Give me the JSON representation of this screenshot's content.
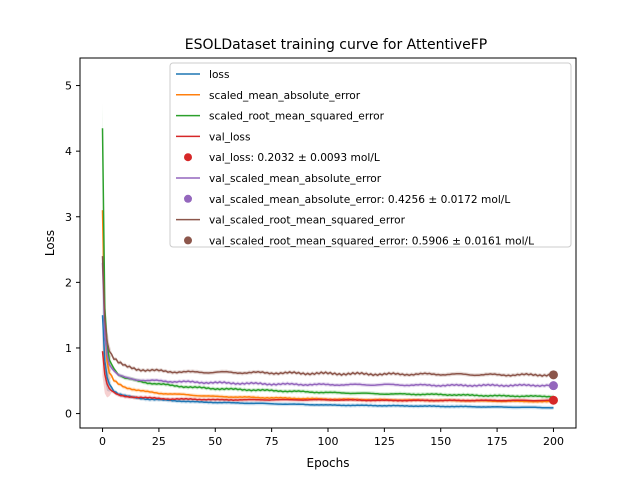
{
  "chart_data": {
    "type": "line",
    "title": "ESOLDataset training curve for AttentiveFP",
    "xlabel": "Epochs",
    "ylabel": "Loss",
    "xlim": [
      -10,
      210
    ],
    "ylim": [
      -0.22,
      5.42
    ],
    "xticks": [
      0,
      25,
      50,
      75,
      100,
      125,
      150,
      175,
      200
    ],
    "yticks": [
      0,
      1,
      2,
      3,
      4,
      5
    ],
    "grid": false,
    "legend_position": "top-right",
    "series": [
      {
        "name": "loss",
        "color": "#1f77b4",
        "style": "line",
        "points": [
          [
            0,
            1.5
          ],
          [
            1,
            0.8
          ],
          [
            2,
            0.55
          ],
          [
            3,
            0.45
          ],
          [
            5,
            0.35
          ],
          [
            7,
            0.3
          ],
          [
            10,
            0.27
          ],
          [
            15,
            0.24
          ],
          [
            20,
            0.22
          ],
          [
            25,
            0.21
          ],
          [
            30,
            0.2
          ],
          [
            40,
            0.18
          ],
          [
            50,
            0.17
          ],
          [
            75,
            0.15
          ],
          [
            100,
            0.13
          ],
          [
            125,
            0.12
          ],
          [
            150,
            0.11
          ],
          [
            175,
            0.1
          ],
          [
            200,
            0.09
          ]
        ]
      },
      {
        "name": "scaled_mean_absolute_error",
        "color": "#ff7f0e",
        "style": "line",
        "points": [
          [
            0,
            3.1
          ],
          [
            1,
            1.3
          ],
          [
            2,
            0.8
          ],
          [
            3,
            0.62
          ],
          [
            5,
            0.5
          ],
          [
            7,
            0.45
          ],
          [
            10,
            0.4
          ],
          [
            15,
            0.36
          ],
          [
            20,
            0.33
          ],
          [
            25,
            0.31
          ],
          [
            30,
            0.3
          ],
          [
            40,
            0.28
          ],
          [
            50,
            0.26
          ],
          [
            75,
            0.24
          ],
          [
            100,
            0.22
          ],
          [
            125,
            0.21
          ],
          [
            150,
            0.2
          ],
          [
            175,
            0.19
          ],
          [
            200,
            0.18
          ]
        ]
      },
      {
        "name": "scaled_root_mean_squared_error",
        "color": "#2ca02c",
        "style": "line",
        "points": [
          [
            0,
            4.35
          ],
          [
            1,
            1.6
          ],
          [
            2,
            1.05
          ],
          [
            3,
            0.82
          ],
          [
            5,
            0.7
          ],
          [
            7,
            0.6
          ],
          [
            10,
            0.54
          ],
          [
            15,
            0.5
          ],
          [
            20,
            0.47
          ],
          [
            25,
            0.45
          ],
          [
            30,
            0.43
          ],
          [
            40,
            0.4
          ],
          [
            50,
            0.38
          ],
          [
            75,
            0.35
          ],
          [
            100,
            0.32
          ],
          [
            125,
            0.3
          ],
          [
            150,
            0.29
          ],
          [
            175,
            0.27
          ],
          [
            200,
            0.26
          ]
        ]
      },
      {
        "name": "val_loss",
        "color": "#d62728",
        "style": "line",
        "points": [
          [
            0,
            0.95
          ],
          [
            1,
            0.6
          ],
          [
            2,
            0.45
          ],
          [
            3,
            0.38
          ],
          [
            5,
            0.32
          ],
          [
            7,
            0.28
          ],
          [
            10,
            0.26
          ],
          [
            15,
            0.25
          ],
          [
            20,
            0.24
          ],
          [
            25,
            0.23
          ],
          [
            30,
            0.22
          ],
          [
            40,
            0.22
          ],
          [
            50,
            0.21
          ],
          [
            75,
            0.21
          ],
          [
            100,
            0.21
          ],
          [
            125,
            0.2
          ],
          [
            150,
            0.2
          ],
          [
            175,
            0.2
          ],
          [
            200,
            0.2
          ]
        ]
      },
      {
        "name": "val_loss: 0.2032 ± 0.0093 mol/L",
        "color": "#d62728",
        "style": "marker",
        "points": [
          [
            200,
            0.2032
          ]
        ]
      },
      {
        "name": "val_scaled_mean_absolute_error",
        "color": "#9467bd",
        "style": "line",
        "points": [
          [
            0,
            2.3
          ],
          [
            1,
            1.2
          ],
          [
            2,
            0.9
          ],
          [
            3,
            0.75
          ],
          [
            5,
            0.65
          ],
          [
            7,
            0.58
          ],
          [
            10,
            0.55
          ],
          [
            15,
            0.52
          ],
          [
            20,
            0.5
          ],
          [
            25,
            0.5
          ],
          [
            30,
            0.49
          ],
          [
            40,
            0.48
          ],
          [
            50,
            0.47
          ],
          [
            75,
            0.45
          ],
          [
            100,
            0.44
          ],
          [
            125,
            0.44
          ],
          [
            150,
            0.43
          ],
          [
            175,
            0.43
          ],
          [
            200,
            0.43
          ]
        ]
      },
      {
        "name": "val_scaled_mean_absolute_error: 0.4256 ± 0.0172 mol/L",
        "color": "#9467bd",
        "style": "marker",
        "points": [
          [
            200,
            0.4256
          ]
        ]
      },
      {
        "name": "val_scaled_root_mean_squared_error",
        "color": "#8c564b",
        "style": "line",
        "points": [
          [
            0,
            2.4
          ],
          [
            1,
            1.45
          ],
          [
            2,
            1.1
          ],
          [
            3,
            0.95
          ],
          [
            5,
            0.85
          ],
          [
            7,
            0.78
          ],
          [
            10,
            0.72
          ],
          [
            15,
            0.68
          ],
          [
            20,
            0.66
          ],
          [
            25,
            0.65
          ],
          [
            30,
            0.64
          ],
          [
            40,
            0.63
          ],
          [
            50,
            0.63
          ],
          [
            75,
            0.62
          ],
          [
            100,
            0.61
          ],
          [
            125,
            0.6
          ],
          [
            150,
            0.6
          ],
          [
            175,
            0.59
          ],
          [
            200,
            0.59
          ]
        ]
      },
      {
        "name": "val_scaled_root_mean_squared_error: 0.5906 ± 0.0161 mol/L",
        "color": "#8c564b",
        "style": "marker",
        "points": [
          [
            200,
            0.5906
          ]
        ]
      }
    ]
  }
}
